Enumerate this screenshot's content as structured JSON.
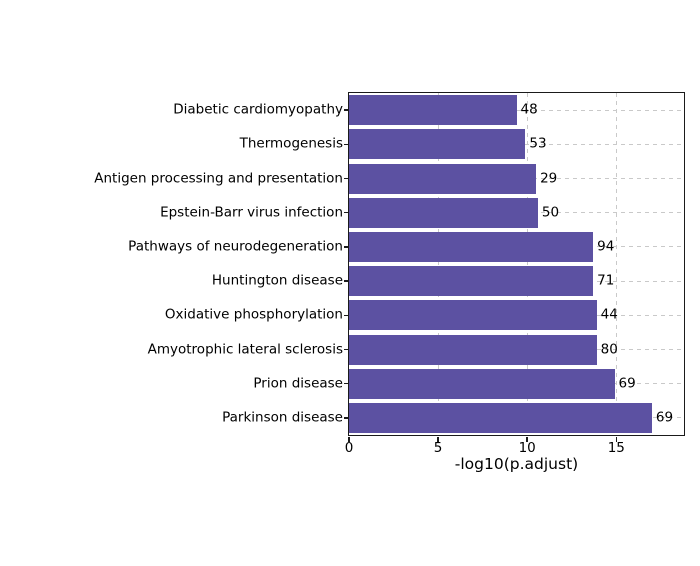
{
  "figure": {
    "background": "#ffffff",
    "bar_color": "#5C51A2",
    "grid_color": "#c9c9c9",
    "frame_color": "#1a1a1a"
  },
  "chart_data": {
    "type": "bar",
    "orientation": "horizontal",
    "title": "",
    "xlabel": "-log10(p.adjust)",
    "ylabel": "",
    "categories": [
      "Diabetic cardiomyopathy",
      "Thermogenesis",
      "Antigen processing and presentation",
      "Epstein-Barr virus infection",
      "Pathways of neurodegeneration",
      "Huntington disease",
      "Oxidative phosphorylation",
      "Amyotrophic lateral sclerosis",
      "Prion disease",
      "Parkinson disease"
    ],
    "values": [
      9.4,
      9.9,
      10.5,
      10.6,
      13.7,
      13.7,
      13.9,
      13.9,
      14.9,
      17.0
    ],
    "bar_labels": [
      "48",
      "53",
      "29",
      "50",
      "94",
      "71",
      "44",
      "80",
      "69",
      "69"
    ],
    "xticks": [
      0,
      5,
      10,
      15
    ],
    "xtick_labels": [
      "0",
      "5",
      "10",
      "15"
    ],
    "xlim": [
      0,
      18.8
    ],
    "grid": "dashed",
    "legend": "none"
  }
}
